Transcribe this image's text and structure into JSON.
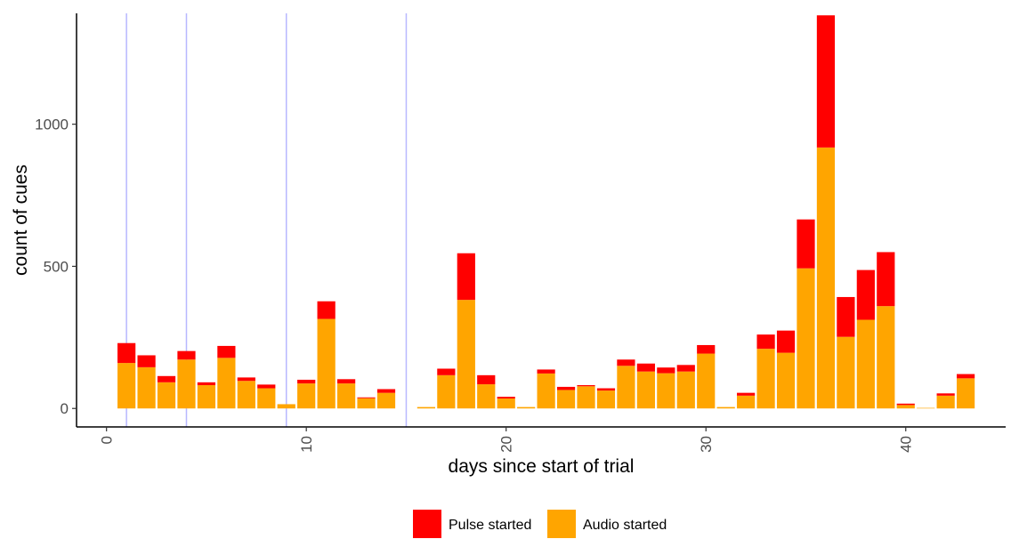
{
  "chart_data": {
    "type": "bar",
    "stacked": true,
    "title": "",
    "xlabel": "days since start of trial",
    "ylabel": "count of cues",
    "xlim": [
      -1.5,
      45
    ],
    "ylim": [
      -65,
      1390
    ],
    "x_ticks": [
      0,
      10,
      20,
      30,
      40
    ],
    "y_ticks": [
      0,
      500,
      1000
    ],
    "grid": false,
    "legend_position": "bottom",
    "vlines": [
      1,
      4,
      9,
      15
    ],
    "vline_color": "#b8b8ff",
    "x": [
      1,
      2,
      3,
      4,
      5,
      6,
      7,
      8,
      9,
      10,
      11,
      12,
      13,
      14,
      16,
      17,
      18,
      19,
      20,
      21,
      22,
      23,
      24,
      25,
      26,
      27,
      28,
      29,
      30,
      31,
      32,
      33,
      34,
      35,
      36,
      37,
      38,
      39,
      40,
      41,
      42,
      43
    ],
    "series": [
      {
        "name": "Audio started",
        "color": "#FFA500",
        "values": [
          160,
          145,
          92,
          172,
          82,
          178,
          97,
          71,
          15,
          88,
          315,
          88,
          36,
          55,
          5,
          117,
          382,
          85,
          35,
          5,
          123,
          65,
          78,
          63,
          150,
          130,
          124,
          130,
          193,
          5,
          45,
          210,
          196,
          493,
          918,
          252,
          312,
          360,
          12,
          2,
          45,
          106
        ]
      },
      {
        "name": "Pulse started",
        "color": "#FF0000",
        "values": [
          70,
          42,
          22,
          30,
          10,
          42,
          12,
          13,
          0,
          13,
          62,
          15,
          3,
          13,
          0,
          23,
          164,
          32,
          6,
          0,
          14,
          11,
          4,
          8,
          22,
          28,
          20,
          23,
          30,
          0,
          10,
          50,
          78,
          172,
          465,
          140,
          175,
          190,
          5,
          0,
          8,
          15
        ]
      }
    ]
  }
}
